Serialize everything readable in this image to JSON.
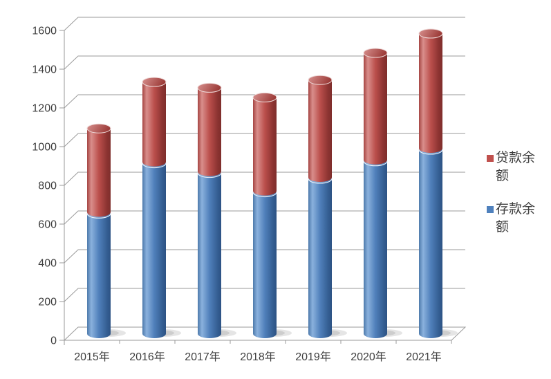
{
  "chart_data": {
    "type": "bar",
    "subtype": "stacked-cylinder-3d",
    "title": "",
    "xlabel": "",
    "ylabel": "",
    "categories": [
      "2015年",
      "2016年",
      "2017年",
      "2018年",
      "2019年",
      "2020年",
      "2021年"
    ],
    "series": [
      {
        "name": "存款余额",
        "color": "#4F81BD",
        "values": [
          620,
          880,
          830,
          730,
          800,
          890,
          950
        ]
      },
      {
        "name": "贷款余额",
        "color": "#C0504D",
        "values": [
          440,
          420,
          440,
          490,
          510,
          560,
          600
        ]
      }
    ],
    "stack_totals": [
      1060,
      1300,
      1270,
      1220,
      1310,
      1450,
      1550
    ],
    "y_axis": {
      "min": 0,
      "max": 1600,
      "step": 200,
      "ticks": [
        "0",
        "200",
        "400",
        "600",
        "800",
        "1000",
        "1200",
        "1400",
        "1600"
      ]
    },
    "grid": true,
    "legend": {
      "position": "right",
      "entries": [
        {
          "label": "贷款余额",
          "color": "#C0504D"
        },
        {
          "label": "存款余额",
          "color": "#4F81BD"
        }
      ]
    },
    "colors": {
      "background": "#ffffff",
      "gridline": "#9a9a9a",
      "axis_line": "#9a9a9a",
      "axis_text": "#3f3f3f"
    }
  }
}
